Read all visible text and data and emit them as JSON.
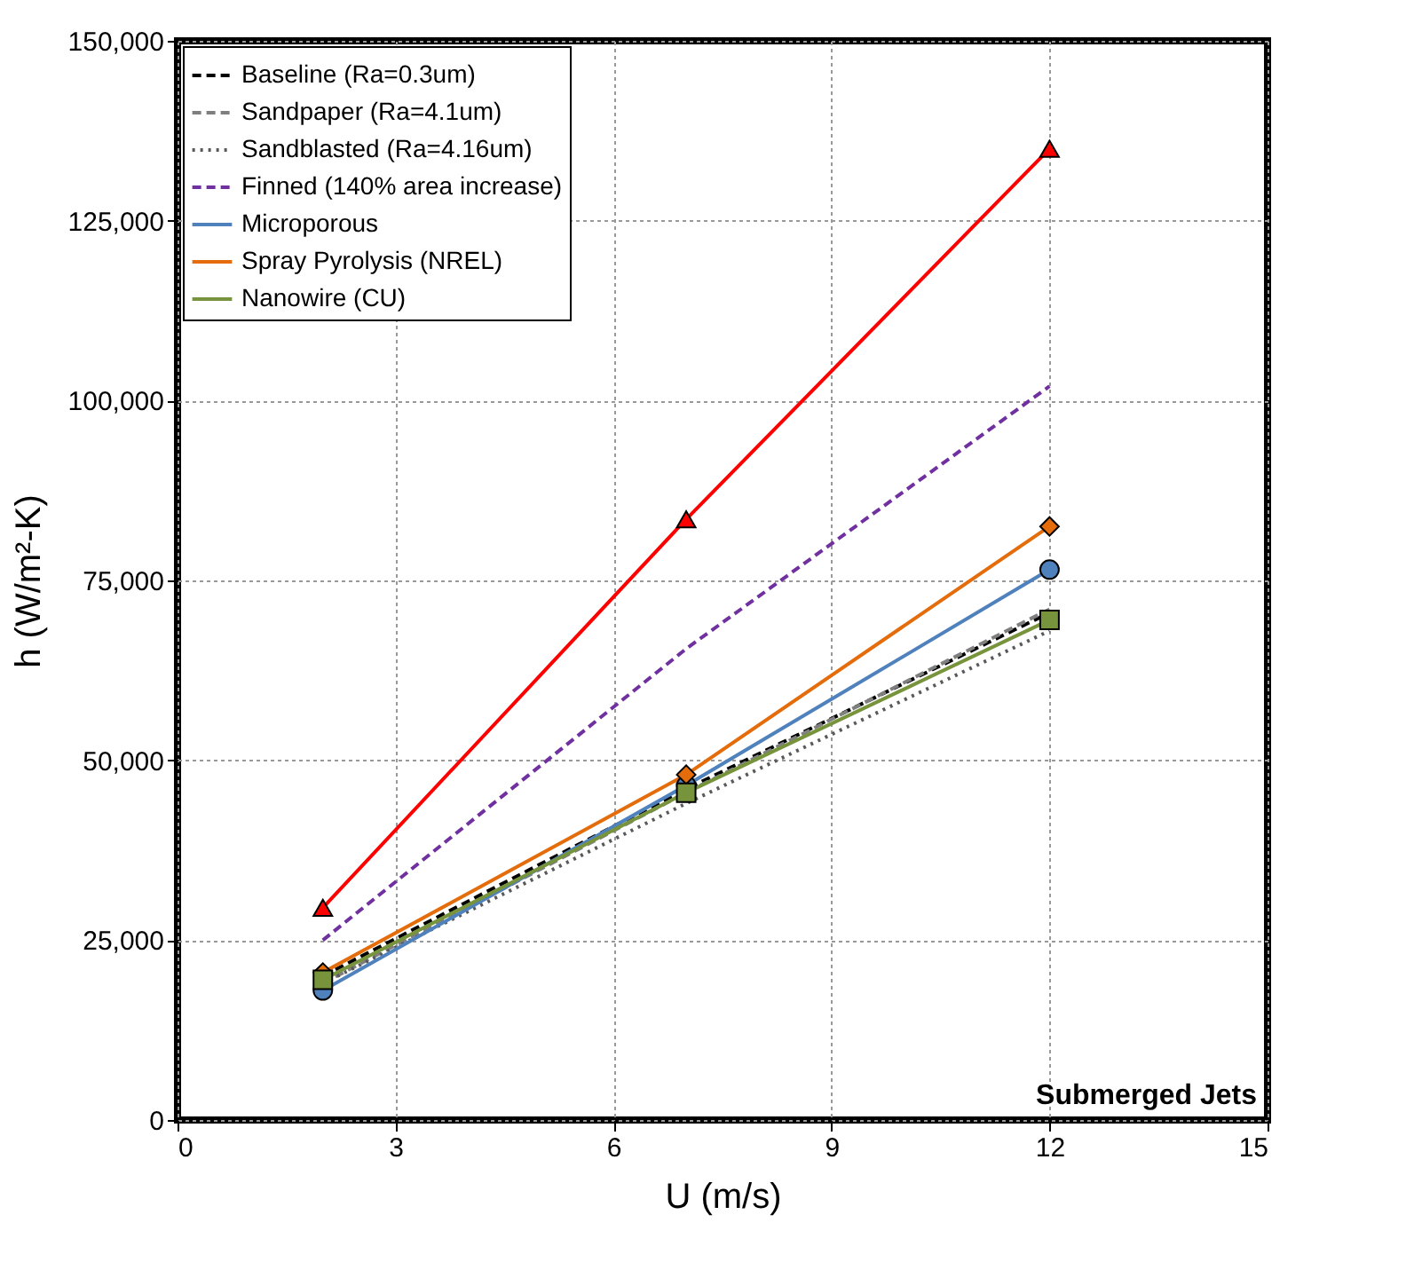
{
  "chart_data": {
    "type": "line",
    "xlabel": "U  (m/s)",
    "ylabel": "h  (W/m²-K)",
    "x": [
      2,
      7,
      12
    ],
    "series": [
      {
        "name": "Baseline (Ra=0.3um)",
        "color": "#000000",
        "line_style": "dashed",
        "marker": "none",
        "values": [
          20000,
          46000,
          70500
        ]
      },
      {
        "name": "Sandpaper (Ra=4.1um)",
        "color": "#7f7f7f",
        "line_style": "dashed",
        "marker": "none",
        "values": [
          19000,
          45500,
          71000
        ]
      },
      {
        "name": "Sandblasted (Ra=4.16um)",
        "color": "#595959",
        "line_style": "dotted",
        "marker": "none",
        "values": [
          19000,
          44000,
          68000
        ]
      },
      {
        "name": "Finned (140% area increase)",
        "color": "#7030a0",
        "line_style": "dashed",
        "marker": "none",
        "values": [
          25000,
          65500,
          102000
        ]
      },
      {
        "name": null,
        "color": "#ff0000",
        "line_style": "solid",
        "marker": "triangle",
        "values": [
          29500,
          83500,
          135000
        ]
      },
      {
        "name": "Microporous",
        "color": "#4f81bd",
        "line_style": "solid",
        "marker": "circle",
        "values": [
          18000,
          46500,
          76500
        ]
      },
      {
        "name": "Spray Pyrolysis (NREL)",
        "color": "#e46c0a",
        "line_style": "solid",
        "marker": "diamond",
        "values": [
          20500,
          48000,
          82500
        ]
      },
      {
        "name": "Nanowire (CU)",
        "color": "#77933c",
        "line_style": "solid",
        "marker": "square",
        "values": [
          19500,
          45500,
          69500
        ]
      }
    ],
    "xlim": [
      0,
      15
    ],
    "xticks": [
      0,
      3,
      6,
      9,
      12,
      15
    ],
    "ylim": [
      0,
      150000
    ],
    "yticks": [
      0,
      {
        "value": 25000,
        "label": "25,000"
      },
      {
        "value": 50000,
        "label": "50,000"
      },
      {
        "value": 75000,
        "label": "75,000"
      },
      {
        "value": 100000,
        "label": "100,000"
      },
      {
        "value": 125000,
        "label": "125,000"
      },
      {
        "value": 150000,
        "label": "150,000"
      }
    ],
    "grid": true,
    "legend": "top left",
    "annotations": [
      "Submerged Jets"
    ]
  }
}
